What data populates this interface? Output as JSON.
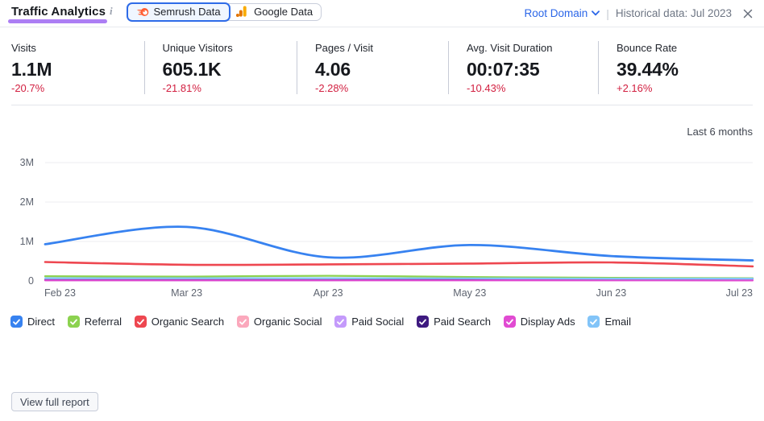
{
  "header": {
    "title": "Traffic Analytics",
    "info_icon": "i",
    "data_source_toggle": [
      {
        "label": "Semrush Data",
        "icon": "semrush-logo-icon",
        "selected": true
      },
      {
        "label": "Google Data",
        "icon": "google-analytics-icon",
        "selected": false
      }
    ],
    "scope_selector": {
      "label": "Root Domain"
    },
    "separator": "|",
    "historical_note": "Historical data: Jul 2023"
  },
  "stats": [
    {
      "label": "Visits",
      "value": "1.1M",
      "change": "-20.7%"
    },
    {
      "label": "Unique Visitors",
      "value": "605.1K",
      "change": "-21.81%"
    },
    {
      "label": "Pages / Visit",
      "value": "4.06",
      "change": "-2.28%"
    },
    {
      "label": "Avg. Visit Duration",
      "value": "00:07:35",
      "change": "-10.43%"
    },
    {
      "label": "Bounce Rate",
      "value": "39.44%",
      "change": "+2.16%"
    }
  ],
  "chart": {
    "period_label": "Last 6 months"
  },
  "chart_data": {
    "type": "line",
    "title": "Traffic by channel, last 6 months",
    "x": [
      "Feb 23",
      "Mar 23",
      "Apr 23",
      "May 23",
      "Jun 23",
      "Jul 23"
    ],
    "y_ticks": [
      3,
      2,
      1,
      0
    ],
    "y_tick_labels": [
      "3M",
      "2M",
      "1M",
      "0"
    ],
    "ylim": [
      0,
      3
    ],
    "unit": "millions of visits",
    "grid": true,
    "legend_position": "bottom",
    "series": [
      {
        "name": "Direct",
        "color": "#3782f0",
        "width": 2.8,
        "values": [
          0.93,
          1.37,
          0.6,
          0.91,
          0.63,
          0.52
        ]
      },
      {
        "name": "Referral",
        "color": "#8cd24f",
        "width": 2.2,
        "values": [
          0.12,
          0.11,
          0.13,
          0.1,
          0.08,
          0.07
        ]
      },
      {
        "name": "Organic Search",
        "color": "#ee4750",
        "width": 2.6,
        "values": [
          0.48,
          0.41,
          0.42,
          0.44,
          0.47,
          0.37
        ]
      },
      {
        "name": "Organic Social",
        "color": "#fba8bc",
        "width": 2.2,
        "values": [
          0.035,
          0.035,
          0.03,
          0.03,
          0.03,
          0.03
        ]
      },
      {
        "name": "Paid Social",
        "color": "#c49afb",
        "width": 2.2,
        "values": [
          0.025,
          0.02,
          0.02,
          0.02,
          0.02,
          0.02
        ]
      },
      {
        "name": "Paid Search",
        "color": "#3e1a80",
        "width": 2.2,
        "values": [
          0.02,
          0.02,
          0.02,
          0.03,
          0.045,
          0.06
        ]
      },
      {
        "name": "Display Ads",
        "color": "#e14bd2",
        "width": 2.2,
        "values": [
          0.015,
          0.015,
          0.015,
          0.015,
          0.015,
          0.012
        ]
      },
      {
        "name": "Email",
        "color": "#82c4f8",
        "width": 2.2,
        "values": [
          0.07,
          0.07,
          0.07,
          0.065,
          0.06,
          0.06
        ]
      }
    ]
  },
  "footer": {
    "view_report_label": "View full report"
  }
}
